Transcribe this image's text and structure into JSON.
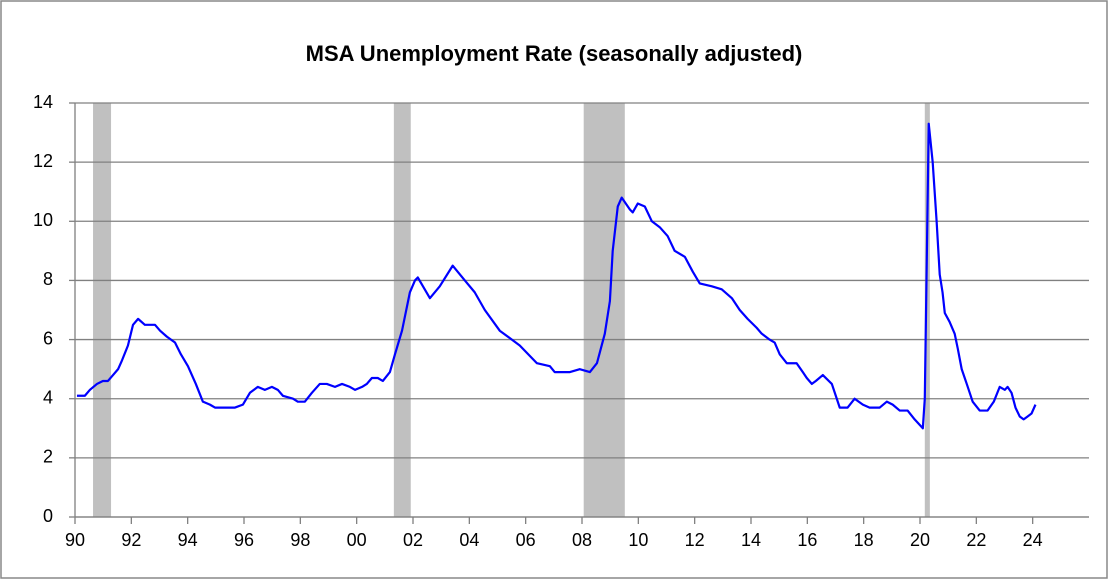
{
  "chart_data": {
    "type": "line",
    "title": "MSA Unemployment Rate (seasonally adjusted)",
    "color": "#0000ff",
    "grid": true,
    "shade_color": "#c0c0c0",
    "shaded_regions": [
      [
        1990.64,
        1991.28
      ],
      [
        2001.32,
        2001.92
      ],
      [
        2008.06,
        2009.52
      ],
      [
        2020.17,
        2020.35
      ]
    ],
    "xlim": [
      1990,
      2026
    ],
    "xticks": [
      {
        "value": 1990,
        "label": "90"
      },
      {
        "value": 1992,
        "label": "92"
      },
      {
        "value": 1994,
        "label": "94"
      },
      {
        "value": 1996,
        "label": "96"
      },
      {
        "value": 1998,
        "label": "98"
      },
      {
        "value": 2000,
        "label": "00"
      },
      {
        "value": 2002,
        "label": "02"
      },
      {
        "value": 2004,
        "label": "04"
      },
      {
        "value": 2006,
        "label": "06"
      },
      {
        "value": 2008,
        "label": "08"
      },
      {
        "value": 2010,
        "label": "10"
      },
      {
        "value": 2012,
        "label": "12"
      },
      {
        "value": 2014,
        "label": "14"
      },
      {
        "value": 2016,
        "label": "16"
      },
      {
        "value": 2018,
        "label": "18"
      },
      {
        "value": 2020,
        "label": "20"
      },
      {
        "value": 2022,
        "label": "22"
      },
      {
        "value": 2024,
        "label": "24"
      }
    ],
    "ylim": [
      0,
      14
    ],
    "yticks": [
      0,
      2,
      4,
      6,
      8,
      10,
      12,
      14
    ],
    "x": [
      1990.07,
      1990.35,
      1990.53,
      1990.78,
      1990.99,
      1991.17,
      1991.35,
      1991.53,
      1991.67,
      1991.88,
      1992.06,
      1992.24,
      1992.48,
      1992.84,
      1993.02,
      1993.26,
      1993.55,
      1993.76,
      1994.01,
      1994.29,
      1994.54,
      1994.79,
      1994.97,
      1995.68,
      1995.96,
      1996.21,
      1996.49,
      1996.74,
      1996.99,
      1997.2,
      1997.38,
      1997.74,
      1997.91,
      1998.16,
      1998.41,
      1998.69,
      1998.94,
      1999.23,
      1999.48,
      1999.76,
      1999.94,
      2000.19,
      2000.36,
      2000.54,
      2000.75,
      2000.93,
      2001.18,
      2001.36,
      2001.61,
      2001.89,
      2002.07,
      2002.17,
      2002.6,
      2002.95,
      2003.41,
      2003.84,
      2004.19,
      2004.55,
      2005.08,
      2005.79,
      2006.4,
      2006.86,
      2007.03,
      2007.57,
      2007.92,
      2008.28,
      2008.53,
      2008.81,
      2008.99,
      2009.09,
      2009.27,
      2009.41,
      2009.7,
      2009.8,
      2009.98,
      2010.23,
      2010.48,
      2010.76,
      2011.04,
      2011.29,
      2011.65,
      2011.93,
      2012.18,
      2012.61,
      2012.96,
      2013.32,
      2013.6,
      2013.88,
      2014.2,
      2014.38,
      2014.66,
      2014.84,
      2015.02,
      2015.27,
      2015.62,
      2015.84,
      2015.98,
      2016.16,
      2016.3,
      2016.55,
      2016.87,
      2017.01,
      2017.15,
      2017.43,
      2017.68,
      2017.97,
      2018.21,
      2018.57,
      2018.82,
      2019.03,
      2019.28,
      2019.56,
      2019.81,
      2020.1,
      2020.17,
      2020.31,
      2020.45,
      2020.59,
      2020.7,
      2020.8,
      2020.88,
      2021.05,
      2021.23,
      2021.34,
      2021.48,
      2021.66,
      2021.87,
      2022.12,
      2022.4,
      2022.62,
      2022.83,
      2023.01,
      2023.11,
      2023.25,
      2023.39,
      2023.54,
      2023.68,
      2023.82,
      2023.96,
      2024.1
    ],
    "values": [
      4.1,
      4.1,
      4.3,
      4.5,
      4.6,
      4.6,
      4.8,
      5.0,
      5.3,
      5.8,
      6.5,
      6.7,
      6.5,
      6.5,
      6.3,
      6.1,
      5.9,
      5.5,
      5.1,
      4.5,
      3.9,
      3.8,
      3.7,
      3.7,
      3.8,
      4.2,
      4.4,
      4.3,
      4.4,
      4.3,
      4.1,
      4.0,
      3.9,
      3.9,
      4.2,
      4.5,
      4.5,
      4.4,
      4.5,
      4.4,
      4.3,
      4.4,
      4.5,
      4.7,
      4.7,
      4.6,
      4.9,
      5.5,
      6.3,
      7.6,
      8.0,
      8.1,
      7.4,
      7.8,
      8.5,
      8.0,
      7.6,
      7.0,
      6.3,
      5.8,
      5.2,
      5.1,
      4.9,
      4.9,
      5.0,
      4.9,
      5.2,
      6.2,
      7.3,
      9.0,
      10.5,
      10.8,
      10.4,
      10.3,
      10.6,
      10.5,
      10.0,
      9.8,
      9.5,
      9.0,
      8.8,
      8.3,
      7.9,
      7.8,
      7.7,
      7.4,
      7.0,
      6.7,
      6.4,
      6.2,
      6.0,
      5.9,
      5.5,
      5.2,
      5.2,
      4.9,
      4.7,
      4.5,
      4.6,
      4.8,
      4.5,
      4.1,
      3.7,
      3.7,
      4.0,
      3.8,
      3.7,
      3.7,
      3.9,
      3.8,
      3.6,
      3.6,
      3.3,
      3.0,
      4.0,
      13.3,
      12.0,
      10.0,
      8.2,
      7.6,
      6.9,
      6.6,
      6.2,
      5.7,
      5.0,
      4.5,
      3.9,
      3.6,
      3.6,
      3.9,
      4.4,
      4.3,
      4.4,
      4.2,
      3.7,
      3.4,
      3.3,
      3.4,
      3.5,
      3.8
    ]
  }
}
